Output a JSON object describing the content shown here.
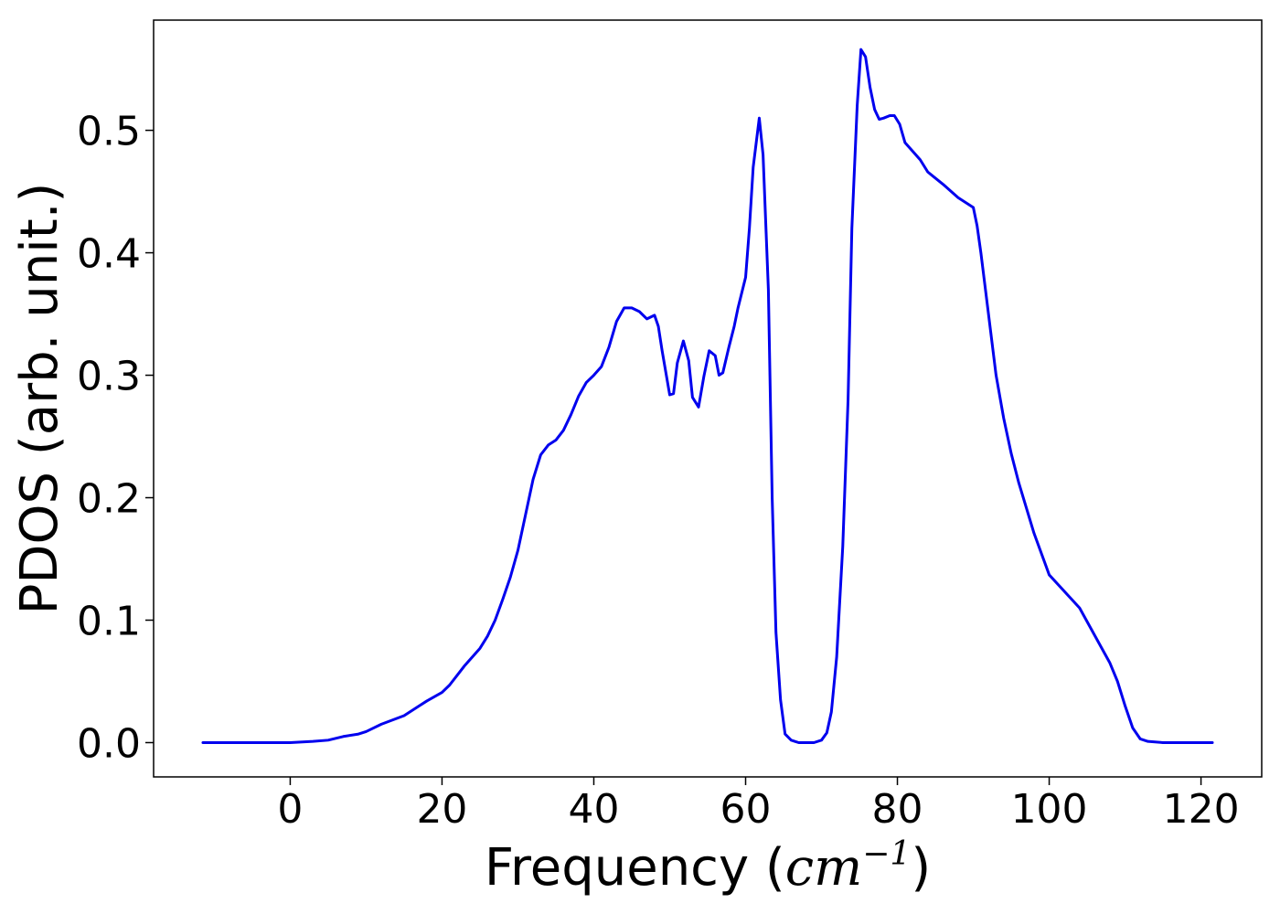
{
  "chart_data": {
    "type": "line",
    "title": "",
    "xlabel": "Frequency (cm⁻¹)",
    "xlabel_parts": {
      "prefix": "Frequency (",
      "unit_base": "cm",
      "unit_exp": "−1",
      "suffix": ")"
    },
    "ylabel": "PDOS (arb. unit.)",
    "xlim": [
      -18,
      128
    ],
    "ylim": [
      -0.028,
      0.59
    ],
    "x_ticks": [
      0,
      20,
      40,
      60,
      80,
      100,
      120
    ],
    "x_tick_labels": [
      "0",
      "20",
      "40",
      "60",
      "80",
      "100",
      "120"
    ],
    "y_ticks": [
      0.0,
      0.1,
      0.2,
      0.3,
      0.4,
      0.5
    ],
    "y_tick_labels": [
      "0.0",
      "0.1",
      "0.2",
      "0.3",
      "0.4",
      "0.5"
    ],
    "grid": false,
    "line_color": "#0000ee",
    "series": [
      {
        "x": [
          -11.5,
          -5,
          0,
          3,
          5,
          7,
          9,
          10,
          12,
          15,
          17,
          18,
          20,
          21,
          22,
          23,
          25,
          26,
          27,
          28,
          29,
          30,
          31,
          32,
          33,
          34,
          35,
          36,
          37,
          38,
          39,
          40,
          41,
          42,
          43,
          44,
          45,
          46,
          47,
          48,
          48.5,
          49,
          50,
          50.5,
          51,
          51.8,
          52.5,
          53,
          53.8,
          54.5,
          55.2,
          56,
          56.5,
          57,
          57.8,
          58.5,
          59,
          60,
          60.5,
          61,
          61.8,
          62.3,
          63,
          63.5,
          64,
          64.6,
          65.2,
          66,
          66.5,
          67,
          68,
          69,
          70,
          70.7,
          71.3,
          72,
          72.8,
          73.5,
          74,
          74.7,
          75.2,
          75.8,
          76.4,
          77,
          77.6,
          78.2,
          79,
          79.6,
          80.3,
          81,
          82,
          83,
          84,
          86,
          88,
          90,
          90.5,
          91,
          92,
          93,
          94,
          95,
          96,
          98,
          100,
          104,
          108,
          109,
          110,
          111,
          112,
          113,
          115,
          118,
          121.5
        ],
        "y": [
          0.0,
          0.0,
          0.0,
          0.001,
          0.002,
          0.005,
          0.007,
          0.009,
          0.015,
          0.022,
          0.03,
          0.034,
          0.041,
          0.047,
          0.055,
          0.063,
          0.077,
          0.087,
          0.1,
          0.117,
          0.135,
          0.157,
          0.186,
          0.215,
          0.235,
          0.243,
          0.247,
          0.255,
          0.268,
          0.283,
          0.294,
          0.3,
          0.307,
          0.323,
          0.344,
          0.355,
          0.355,
          0.352,
          0.346,
          0.349,
          0.34,
          0.32,
          0.284,
          0.285,
          0.31,
          0.328,
          0.312,
          0.282,
          0.274,
          0.299,
          0.32,
          0.316,
          0.3,
          0.302,
          0.323,
          0.34,
          0.355,
          0.38,
          0.42,
          0.47,
          0.51,
          0.48,
          0.37,
          0.2,
          0.09,
          0.035,
          0.007,
          0.002,
          0.001,
          0.0,
          0.0,
          0.0,
          0.002,
          0.008,
          0.025,
          0.07,
          0.16,
          0.28,
          0.42,
          0.52,
          0.566,
          0.56,
          0.535,
          0.517,
          0.509,
          0.51,
          0.512,
          0.512,
          0.505,
          0.49,
          0.483,
          0.476,
          0.466,
          0.456,
          0.445,
          0.437,
          0.422,
          0.4,
          0.35,
          0.3,
          0.265,
          0.236,
          0.212,
          0.171,
          0.137,
          0.11,
          0.065,
          0.05,
          0.03,
          0.012,
          0.003,
          0.001,
          0.0,
          0.0,
          0.0
        ]
      }
    ]
  }
}
